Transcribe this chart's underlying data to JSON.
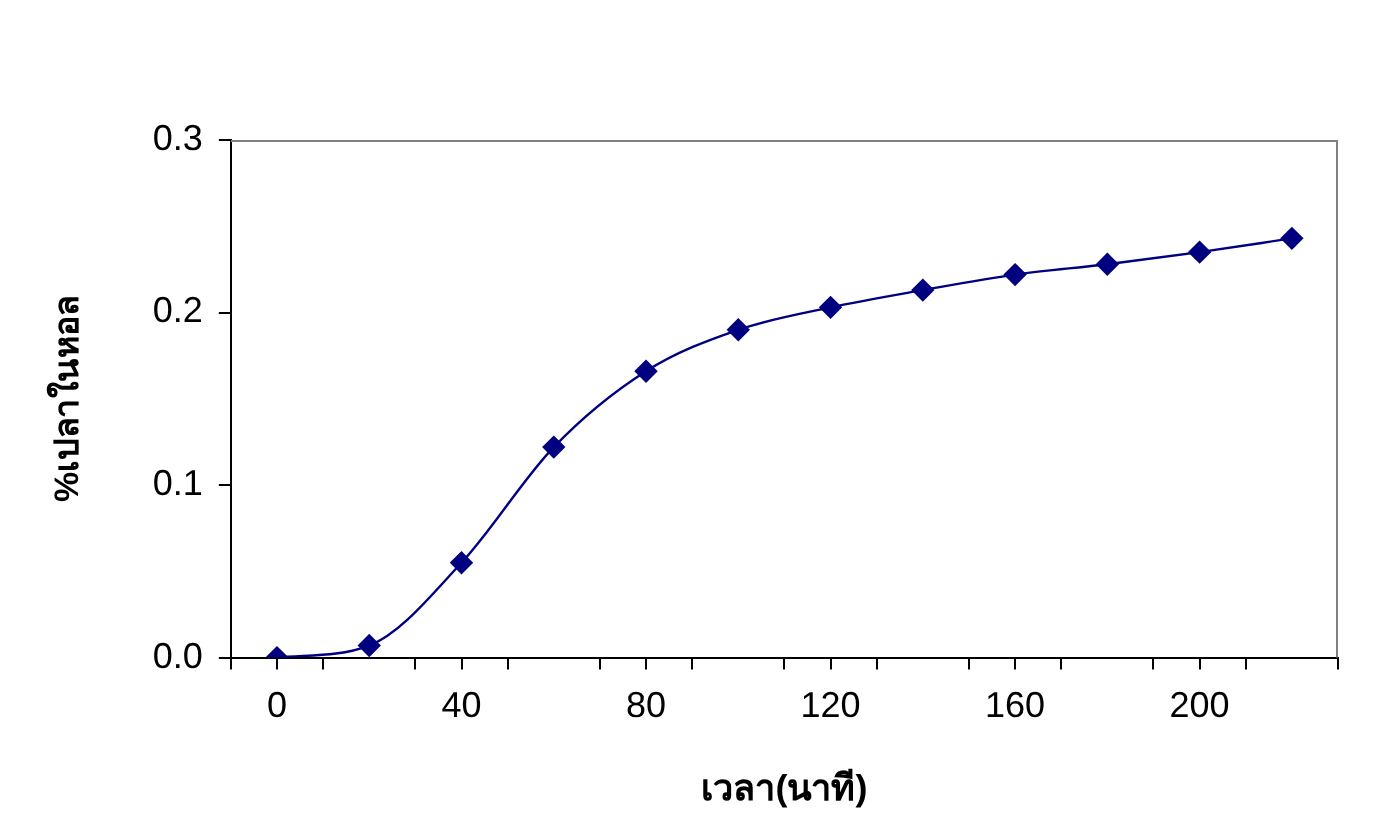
{
  "chart_data": {
    "type": "line",
    "xlabel": "เวลา(นาที)",
    "ylabel": "%เปลาในหอล",
    "x": [
      0,
      20,
      40,
      60,
      80,
      100,
      120,
      140,
      160,
      180,
      200,
      220
    ],
    "series": [
      {
        "color": "#000080",
        "values": [
          0,
          0.007,
          0.055,
          0.122,
          0.166,
          0.19,
          0.203,
          0.213,
          0.222,
          0.228,
          0.235,
          0.243
        ]
      }
    ],
    "xlim": [
      -10,
      230
    ],
    "xticks": [
      {
        "value": -10,
        "label": null
      },
      0,
      {
        "value": 10,
        "label": null
      },
      {
        "value": 30,
        "label": null
      },
      40,
      {
        "value": 50,
        "label": null
      },
      {
        "value": 70,
        "label": null
      },
      80,
      {
        "value": 90,
        "label": null
      },
      {
        "value": 110,
        "label": null
      },
      120,
      {
        "value": 130,
        "label": null
      },
      {
        "value": 150,
        "label": null
      },
      160,
      {
        "value": 170,
        "label": null
      },
      {
        "value": 190,
        "label": null
      },
      200,
      {
        "value": 210,
        "label": null
      },
      {
        "value": 230,
        "label": null
      }
    ],
    "ylim": [
      0,
      0.3
    ],
    "yticks": [
      {
        "value": 0,
        "label": "0.0"
      },
      0.1,
      0.2,
      0.3
    ],
    "grid": false,
    "legend": false,
    "marker": "diamond",
    "line_style": "solid"
  }
}
